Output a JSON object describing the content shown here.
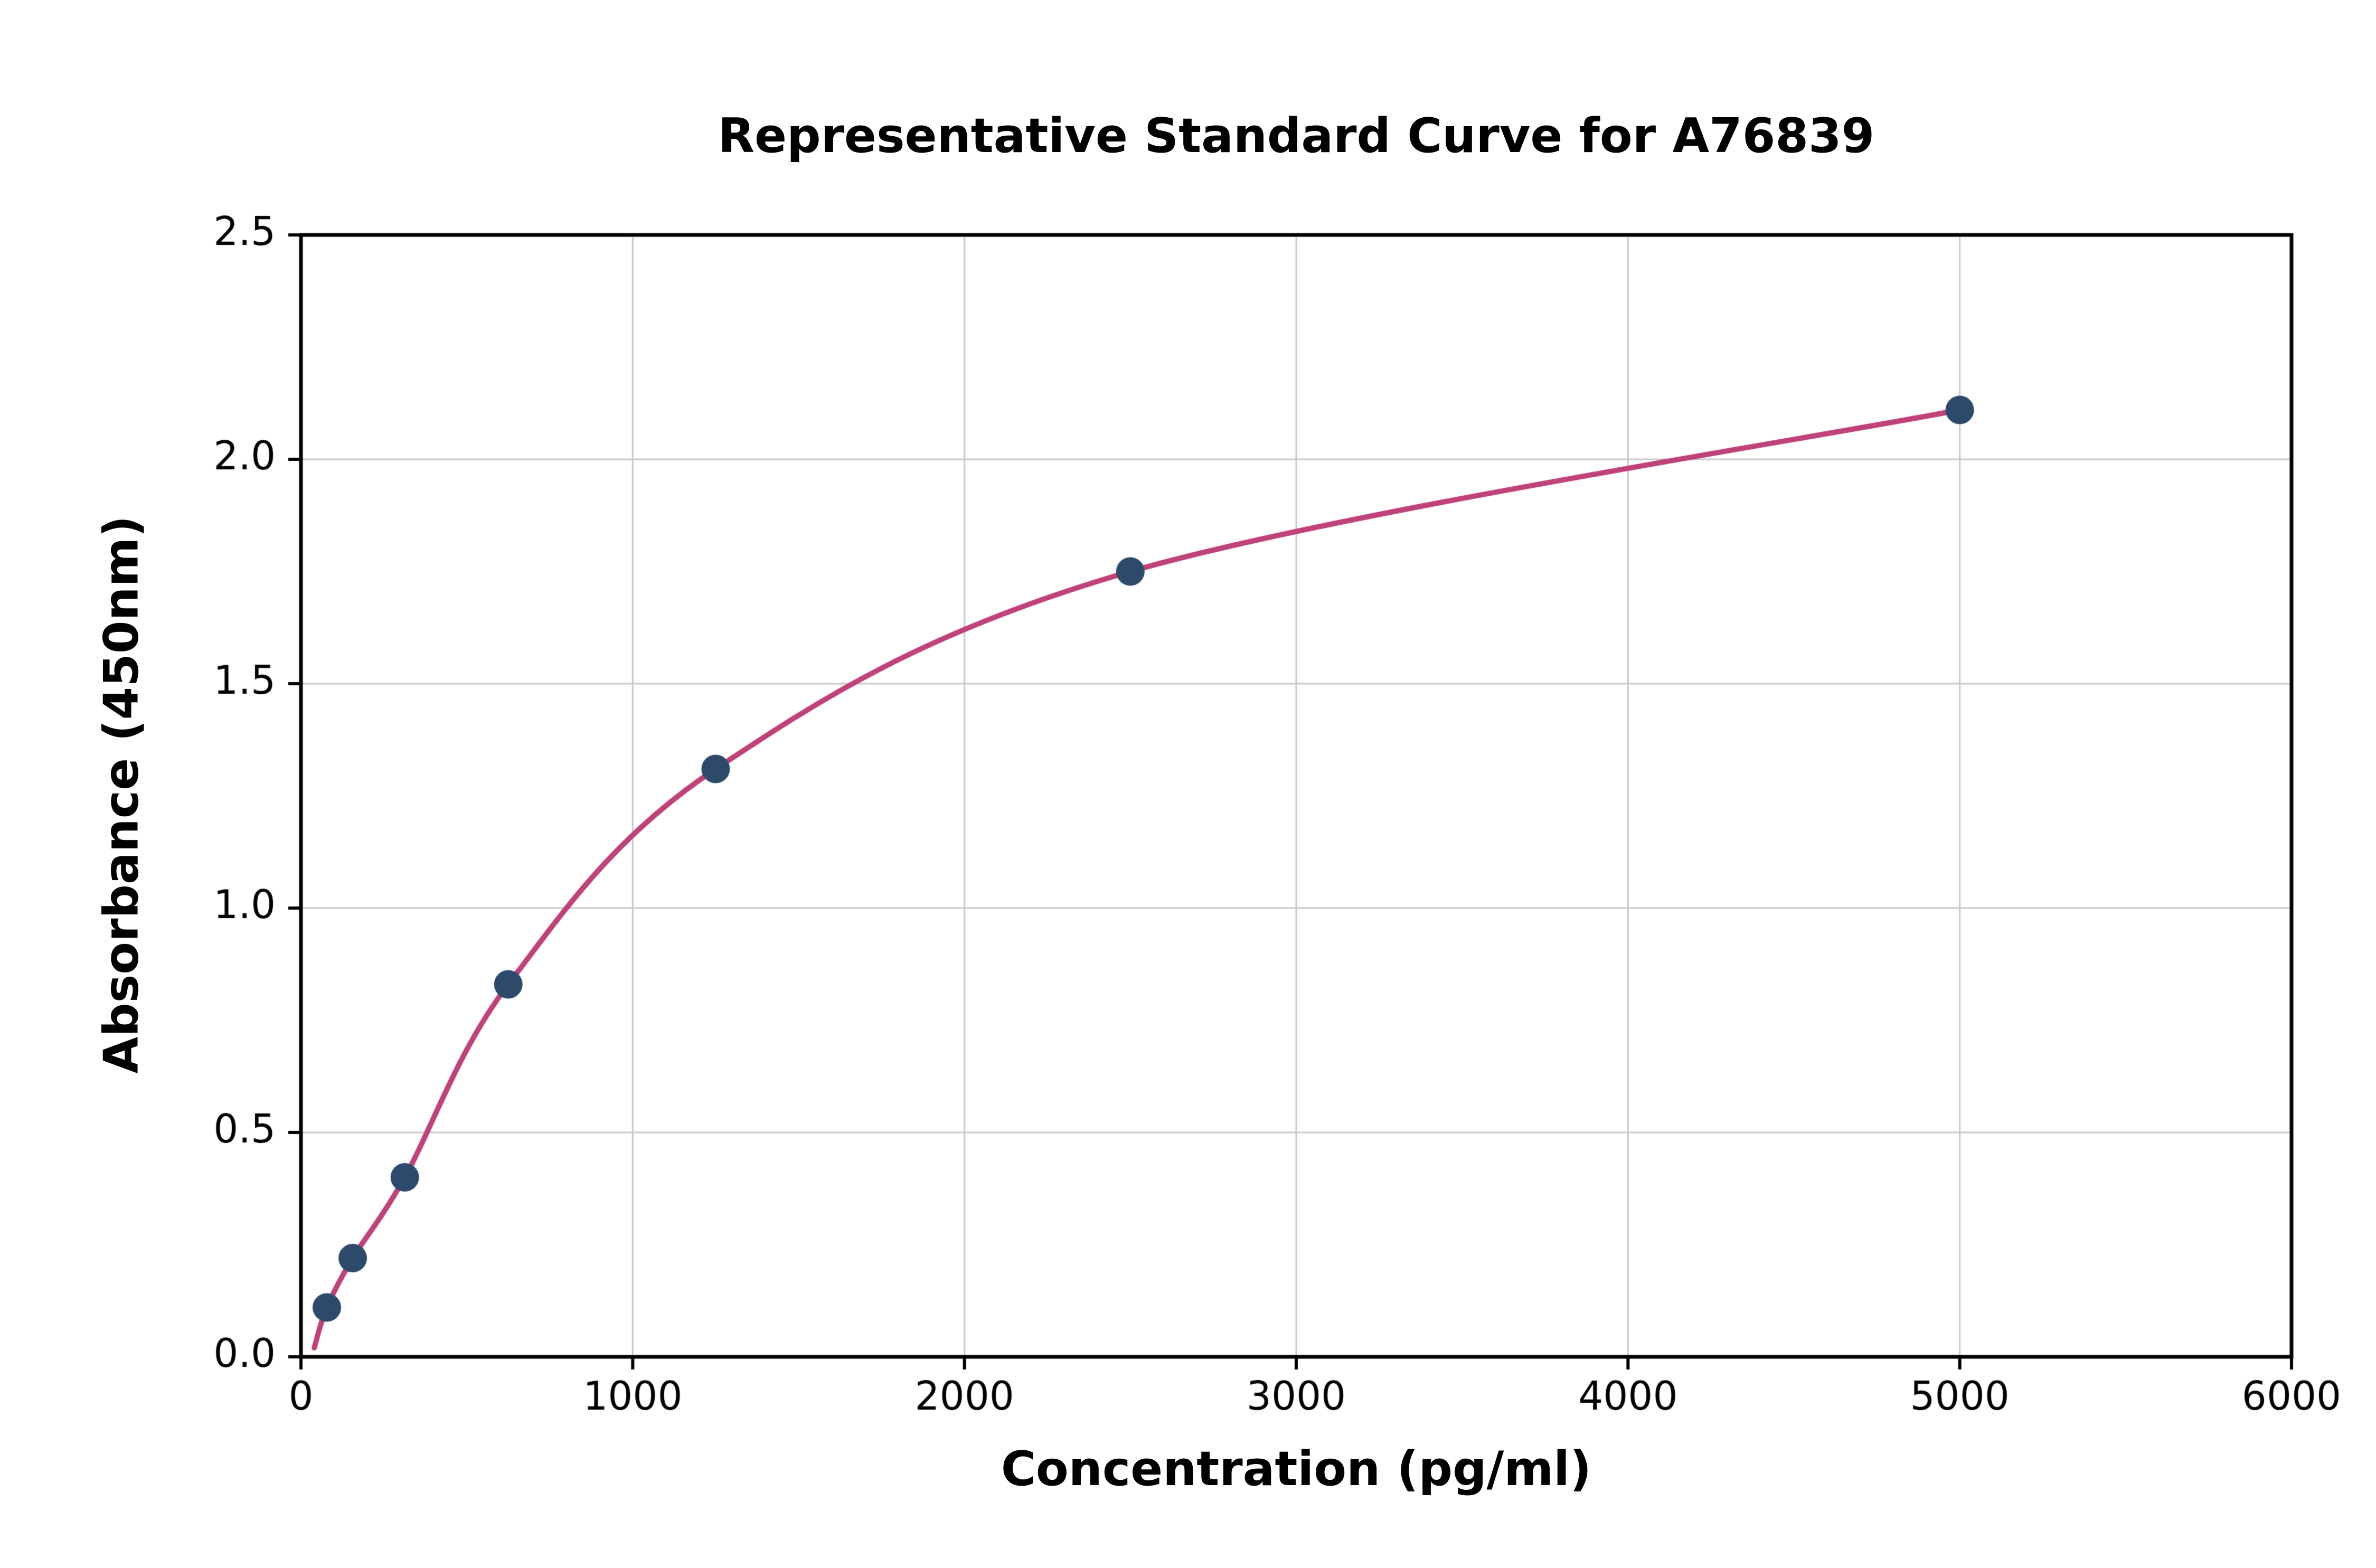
{
  "page": {
    "background": "#ffffff"
  },
  "chart_data": {
    "type": "scatter",
    "title": "Representative Standard Curve for A76839",
    "xlabel": "Concentration (pg/ml)",
    "ylabel": "Absorbance (450nm)",
    "xlim": [
      0,
      6000
    ],
    "ylim": [
      0,
      2.5
    ],
    "x_ticks": [
      0,
      1000,
      2000,
      3000,
      4000,
      5000,
      6000
    ],
    "x_tick_labels": [
      "0",
      "1000",
      "2000",
      "3000",
      "4000",
      "5000",
      "6000"
    ],
    "y_ticks": [
      0,
      0.5,
      1.0,
      1.5,
      2.0,
      2.5
    ],
    "y_tick_labels": [
      "0.0",
      "0.5",
      "1.0",
      "1.5",
      "2.0",
      "2.5"
    ],
    "grid": true,
    "legend": "none",
    "series": [
      {
        "name": "standard-points",
        "type": "scatter",
        "x": [
          78,
          156,
          313,
          625,
          1250,
          2500,
          5000
        ],
        "y": [
          0.11,
          0.22,
          0.4,
          0.83,
          1.31,
          1.75,
          2.11
        ],
        "color": "#2e4a6b"
      },
      {
        "name": "fit-curve",
        "type": "line",
        "anchor": {
          "x": 40,
          "y": 0.02
        },
        "color": "#c0427a"
      }
    ],
    "colors": {
      "point": "#2e4a6b",
      "curve": "#c0427a",
      "grid": "#c9c9c9",
      "axis": "#000000",
      "text": "#000000"
    }
  }
}
